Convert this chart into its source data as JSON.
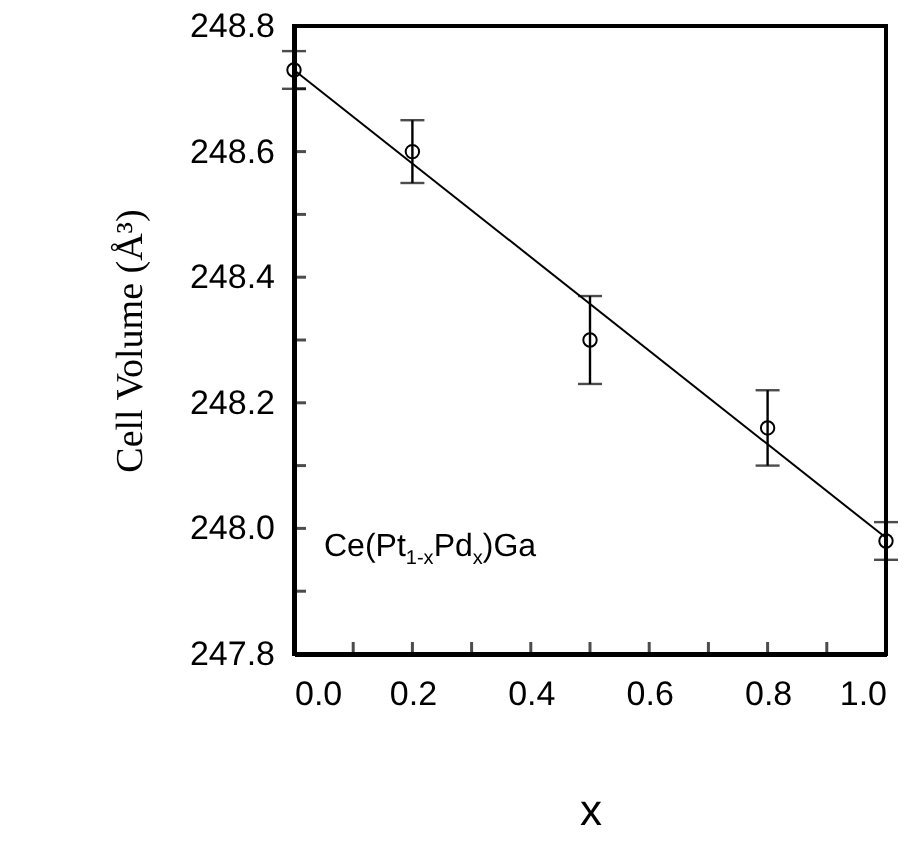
{
  "chart_data": {
    "type": "scatter",
    "xlabel": "x",
    "ylabel": "Cell Volume (Å³)",
    "x": [
      0,
      0.2,
      0.5,
      0.8,
      1.0
    ],
    "series": [
      {
        "type": "scatter",
        "color": "#000000",
        "marker": "circle",
        "values": [
          248.73,
          248.6,
          248.3,
          248.16,
          247.98
        ],
        "errors": [
          [
            248.7,
            248.76
          ],
          [
            248.55,
            248.65
          ],
          [
            248.23,
            248.37
          ],
          [
            248.1,
            248.22
          ],
          [
            247.95,
            248.01
          ]
        ]
      },
      {
        "type": "line",
        "color": "#000000",
        "x": [
          0,
          1
        ],
        "values": [
          248.73,
          247.985
        ]
      }
    ],
    "xlim": [
      0,
      1
    ],
    "ylim": [
      247.8,
      248.8
    ],
    "xticks": [
      {
        "value": 0,
        "label": "0.0"
      },
      {
        "value": 0.1,
        "label": null
      },
      {
        "value": 0.2,
        "label": "0.2"
      },
      {
        "value": 0.3,
        "label": null
      },
      {
        "value": 0.4,
        "label": "0.4"
      },
      {
        "value": 0.5,
        "label": null
      },
      {
        "value": 0.6,
        "label": "0.6"
      },
      {
        "value": 0.7,
        "label": null
      },
      {
        "value": 0.8,
        "label": "0.8"
      },
      {
        "value": 0.9,
        "label": null
      },
      {
        "value": 1,
        "label": "1.0"
      }
    ],
    "yticks": [
      {
        "value": 247.8,
        "label": "247.8"
      },
      {
        "value": 247.9,
        "label": null
      },
      {
        "value": 248,
        "label": "248.0"
      },
      {
        "value": 248.1,
        "label": null
      },
      {
        "value": 248.2,
        "label": "248.2"
      },
      {
        "value": 248.3,
        "label": null
      },
      {
        "value": 248.4,
        "label": "248.4"
      },
      {
        "value": 248.5,
        "label": null
      },
      {
        "value": 248.6,
        "label": "248.6"
      },
      {
        "value": 248.7,
        "label": null
      },
      {
        "value": 248.8,
        "label": "248.8"
      }
    ],
    "annotations": [
      "Ce(Pt$_{1-x}$Pd$_{x}$)Ga"
    ],
    "grid": false
  }
}
